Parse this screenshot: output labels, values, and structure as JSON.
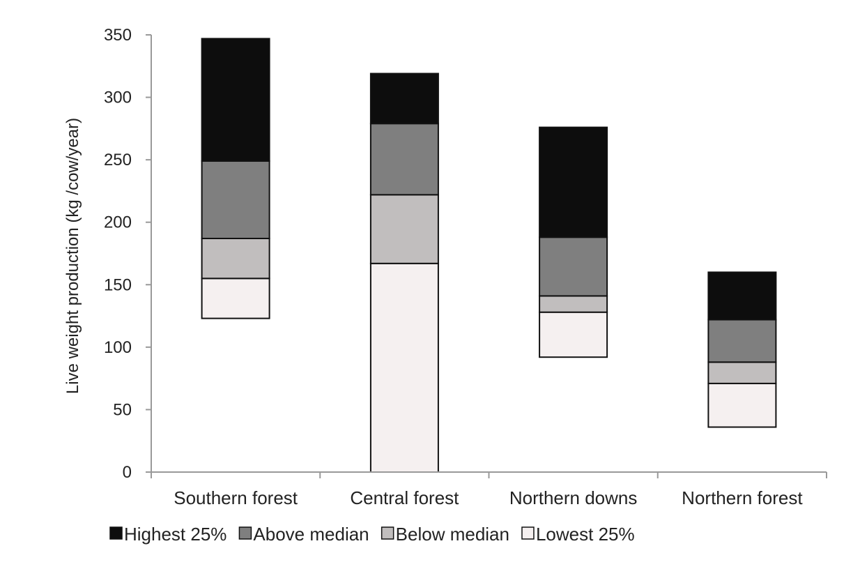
{
  "chart_data": {
    "type": "bar",
    "stacked": true,
    "floating": true,
    "title": "",
    "xlabel": "",
    "ylabel": "Live weight production (kg /cow/year)",
    "ylim": [
      0,
      350
    ],
    "yticks": [
      0,
      50,
      100,
      150,
      200,
      250,
      300,
      350
    ],
    "grid": false,
    "legend_position": "bottom",
    "categories": [
      "Southern forest",
      "Central forest",
      "Northern downs",
      "Northern forest"
    ],
    "series": [
      {
        "name": "Lowest 25%",
        "color": "#f5f0f0",
        "ranges": [
          [
            123,
            155
          ],
          [
            0,
            167
          ],
          [
            92,
            128
          ],
          [
            36,
            71
          ]
        ]
      },
      {
        "name": "Below median",
        "color": "#c1bebe",
        "ranges": [
          [
            155,
            187
          ],
          [
            167,
            222
          ],
          [
            128,
            141
          ],
          [
            71,
            88
          ]
        ]
      },
      {
        "name": "Above median",
        "color": "#7f7f7f",
        "ranges": [
          [
            187,
            249
          ],
          [
            222,
            279
          ],
          [
            141,
            188
          ],
          [
            88,
            122
          ]
        ]
      },
      {
        "name": "Highest 25%",
        "color": "#0d0d0d",
        "ranges": [
          [
            249,
            347
          ],
          [
            279,
            319
          ],
          [
            188,
            276
          ],
          [
            122,
            160
          ]
        ]
      }
    ],
    "legend_order": [
      "Highest 25%",
      "Above median",
      "Below median",
      "Lowest 25%"
    ]
  }
}
